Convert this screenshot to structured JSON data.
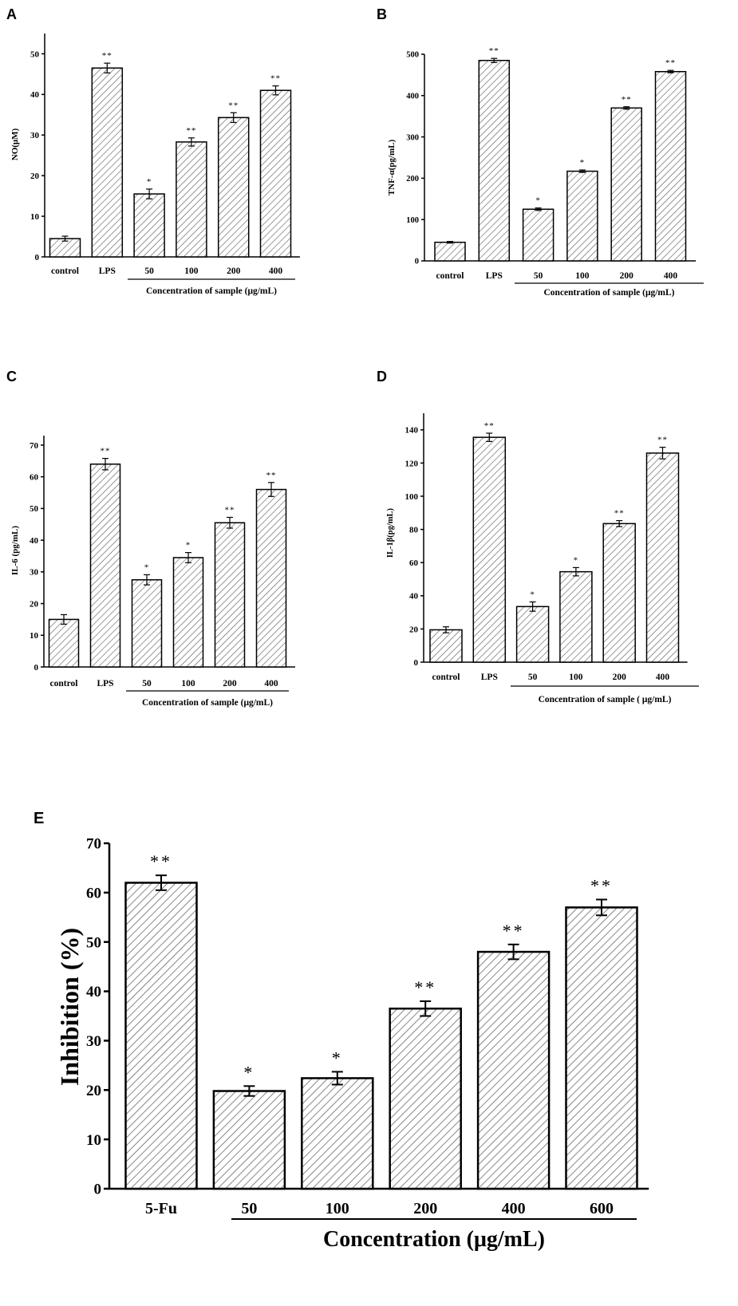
{
  "figure": {
    "name": "cytokine-and-inhibition-figure"
  },
  "chart_data": [
    {
      "panel": "A",
      "type": "bar",
      "categories": [
        "control",
        "LPS",
        "50",
        "100",
        "200",
        "400"
      ],
      "values": [
        4.5,
        46.5,
        15.5,
        28.3,
        34.3,
        41.0
      ],
      "errors": [
        0.6,
        1.2,
        1.2,
        1.0,
        1.2,
        1.1
      ],
      "annotations": [
        "",
        "**",
        "*",
        "**",
        "**",
        "**"
      ],
      "ylabel": "NO(μM)",
      "xlabel": "Concentration of sample (μg/mL)",
      "ylim": [
        0,
        55
      ],
      "yticks": [
        0,
        10,
        20,
        30,
        40,
        50
      ]
    },
    {
      "panel": "B",
      "type": "bar",
      "categories": [
        "control",
        "LPS",
        "50",
        "100",
        "200",
        "400"
      ],
      "values": [
        45,
        485,
        125,
        217,
        370,
        458
      ],
      "errors": [
        2,
        5,
        3,
        3,
        3,
        3
      ],
      "annotations": [
        "",
        "**",
        "*",
        "*",
        "**",
        "**"
      ],
      "ylabel": "TNF-α(pg/mL)",
      "xlabel": "Concentration of sample (μg/mL)",
      "ylim": [
        0,
        500
      ],
      "yticks": [
        0,
        100,
        200,
        300,
        400,
        500
      ]
    },
    {
      "panel": "C",
      "type": "bar",
      "categories": [
        "control",
        "LPS",
        "50",
        "100",
        "200",
        "400"
      ],
      "values": [
        15.0,
        64.0,
        27.5,
        34.5,
        45.5,
        56.0
      ],
      "errors": [
        1.5,
        1.8,
        1.6,
        1.6,
        1.7,
        2.2
      ],
      "annotations": [
        "",
        "**",
        "*",
        "*",
        "**",
        "**"
      ],
      "ylabel": "IL-6 (pg/mL)",
      "xlabel": "Concentration of sample (μg/mL)",
      "ylim": [
        0,
        73
      ],
      "yticks": [
        0,
        10,
        20,
        30,
        40,
        50,
        60,
        70
      ]
    },
    {
      "panel": "D",
      "type": "bar",
      "categories": [
        "control",
        "LPS",
        "50",
        "100",
        "200",
        "400"
      ],
      "values": [
        19.5,
        135.5,
        33.5,
        54.5,
        83.5,
        126.0
      ],
      "errors": [
        1.8,
        2.5,
        2.8,
        2.5,
        1.8,
        3.5
      ],
      "annotations": [
        "",
        "**",
        "*",
        "*",
        "**",
        "**"
      ],
      "ylabel": "IL-1β(pg/mL)",
      "xlabel": "Concentration of sample ( μg/mL)",
      "ylim": [
        0,
        150
      ],
      "yticks": [
        0,
        20,
        40,
        60,
        80,
        100,
        120,
        140
      ]
    },
    {
      "panel": "E",
      "type": "bar",
      "categories": [
        "5-Fu",
        "50",
        "100",
        "200",
        "400",
        "600"
      ],
      "values": [
        62.0,
        19.8,
        22.4,
        36.5,
        48.0,
        57.0
      ],
      "errors": [
        1.5,
        1.0,
        1.3,
        1.5,
        1.5,
        1.6
      ],
      "annotations": [
        "**",
        "*",
        "*",
        "**",
        "**",
        "**"
      ],
      "ylabel": "Inhibition (%)",
      "xlabel": "Concentration (μg/mL)",
      "ylim": [
        0,
        70
      ],
      "yticks": [
        0,
        10,
        20,
        30,
        40,
        50,
        60,
        70
      ]
    }
  ]
}
